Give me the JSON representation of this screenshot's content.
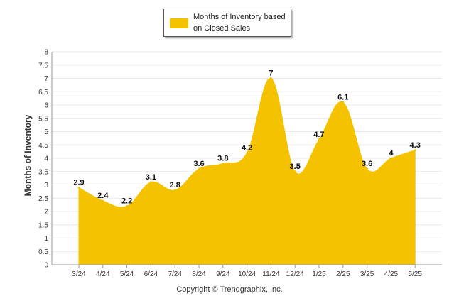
{
  "legend": {
    "label": "Months of Inventory based on Closed Sales"
  },
  "copyright": "Copyright © Trendgraphix, Inc.",
  "colors": {
    "fill": "#f5c200",
    "grid": "#e8e8e8",
    "axis": "#999999",
    "text": "#333333"
  },
  "chart_data": {
    "type": "area",
    "title": "",
    "xlabel": "",
    "ylabel": "Months of Inventory",
    "ylim": [
      0,
      8
    ],
    "y_ticks": [
      "0",
      "0.5",
      "1",
      "1.5",
      "2",
      "2.5",
      "3",
      "3.5",
      "4",
      "4.5",
      "5",
      "5.5",
      "6",
      "6.5",
      "7",
      "7.5",
      "8"
    ],
    "grid": true,
    "legend_position": "top-center",
    "categories": [
      "3/24",
      "4/24",
      "5/24",
      "6/24",
      "7/24",
      "8/24",
      "9/24",
      "10/24",
      "11/24",
      "12/24",
      "1/25",
      "2/25",
      "3/25",
      "4/25",
      "5/25"
    ],
    "series": [
      {
        "name": "Months of Inventory based on Closed Sales",
        "values": [
          2.9,
          2.4,
          2.2,
          3.1,
          2.8,
          3.6,
          3.8,
          4.2,
          7,
          3.5,
          4.7,
          6.1,
          3.6,
          4,
          4.3
        ]
      }
    ]
  }
}
